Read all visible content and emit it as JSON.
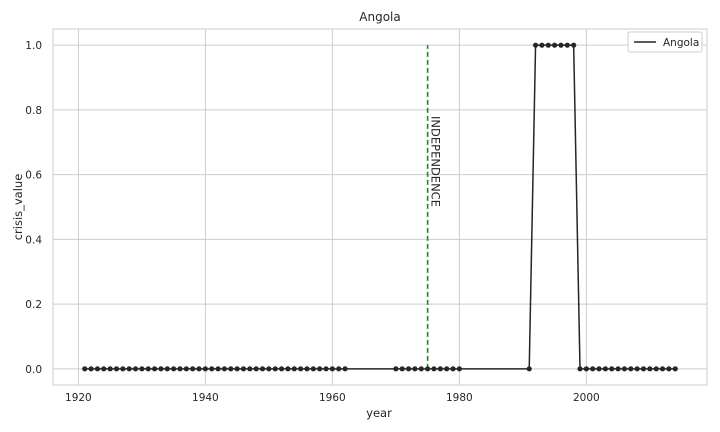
{
  "chart_data": {
    "type": "line",
    "title": "Angola",
    "xlabel": "year",
    "ylabel": "crisis_value",
    "xlim": [
      1916,
      2019
    ],
    "ylim": [
      -0.05,
      1.05
    ],
    "x_ticks": [
      1920,
      1940,
      1960,
      1980,
      2000
    ],
    "x_tick_labels": [
      "1920",
      "1940",
      "1960",
      "1980",
      "2000"
    ],
    "y_ticks": [
      0.0,
      0.2,
      0.4,
      0.6,
      0.8,
      1.0
    ],
    "y_tick_labels": [
      "0.0",
      "0.2",
      "0.4",
      "0.6",
      "0.8",
      "1.0"
    ],
    "grid": true,
    "legend_position": "top-right",
    "series": [
      {
        "name": "Angola",
        "color": "#262626",
        "x": [
          1921,
          1922,
          1923,
          1924,
          1925,
          1926,
          1927,
          1928,
          1929,
          1930,
          1931,
          1932,
          1933,
          1934,
          1935,
          1936,
          1937,
          1938,
          1939,
          1940,
          1941,
          1942,
          1943,
          1944,
          1945,
          1946,
          1947,
          1948,
          1949,
          1950,
          1951,
          1952,
          1953,
          1954,
          1955,
          1956,
          1957,
          1958,
          1959,
          1960,
          1961,
          1962,
          1970,
          1971,
          1972,
          1973,
          1974,
          1975,
          1976,
          1977,
          1978,
          1979,
          1980,
          1991,
          1992,
          1993,
          1994,
          1995,
          1996,
          1997,
          1998,
          1999,
          2000,
          2001,
          2002,
          2003,
          2004,
          2005,
          2006,
          2007,
          2008,
          2009,
          2010,
          2011,
          2012,
          2013,
          2014
        ],
        "y": [
          0,
          0,
          0,
          0,
          0,
          0,
          0,
          0,
          0,
          0,
          0,
          0,
          0,
          0,
          0,
          0,
          0,
          0,
          0,
          0,
          0,
          0,
          0,
          0,
          0,
          0,
          0,
          0,
          0,
          0,
          0,
          0,
          0,
          0,
          0,
          0,
          0,
          0,
          0,
          0,
          0,
          0,
          0,
          0,
          0,
          0,
          0,
          0,
          0,
          0,
          0,
          0,
          0,
          0,
          1,
          1,
          1,
          1,
          1,
          1,
          1,
          0,
          0,
          0,
          0,
          0,
          0,
          0,
          0,
          0,
          0,
          0,
          0,
          0,
          0,
          0,
          0
        ]
      }
    ],
    "annotations": [
      {
        "type": "vline",
        "x": 1975,
        "y_range": [
          0,
          1
        ],
        "color": "#1a8a1a",
        "style": "dashed",
        "label": "INDEPENDENCE",
        "label_y": 0.5
      }
    ]
  }
}
